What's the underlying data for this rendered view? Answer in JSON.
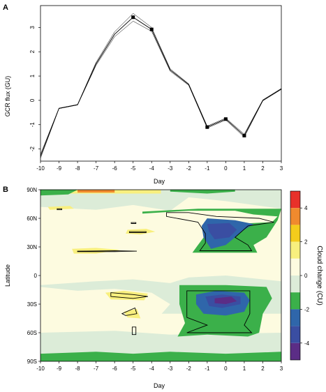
{
  "chart_data": [
    {
      "panel_label": "A",
      "type": "line",
      "xlabel": "Day",
      "ylabel": "GCR flux (GU)",
      "xlim": [
        -10,
        3
      ],
      "ylim": [
        -2.5,
        3.9
      ],
      "x_ticks": [
        "-10",
        "-9",
        "-8",
        "-7",
        "-6",
        "-5",
        "-4",
        "-3",
        "-2",
        "-1",
        "0",
        "1",
        "2",
        "3"
      ],
      "y_ticks": [
        "-2",
        "-1",
        "0",
        "1",
        "2",
        "3"
      ],
      "x": [
        -10,
        -9,
        -8,
        -7,
        -6,
        -5,
        -4,
        -3,
        -2,
        -1,
        0,
        1,
        2,
        3
      ],
      "series": [
        {
          "values": [
            -2.3,
            -0.33,
            -0.18,
            1.5,
            2.72,
            3.42,
            2.92,
            1.25,
            0.65,
            -1.1,
            -0.77,
            -1.45,
            0.0,
            0.47
          ]
        },
        {
          "values": [
            -2.22,
            -0.32,
            -0.17,
            1.56,
            2.82,
            3.58,
            3.0,
            1.3,
            0.68,
            -1.06,
            -0.73,
            -1.39,
            0.02,
            0.49
          ]
        },
        {
          "values": [
            -2.38,
            -0.34,
            -0.19,
            1.44,
            2.62,
            3.26,
            2.84,
            1.2,
            0.62,
            -1.14,
            -0.81,
            -1.51,
            -0.02,
            0.45
          ]
        }
      ],
      "markers": [
        {
          "x": -5,
          "y": 3.42
        },
        {
          "x": -4,
          "y": 2.92
        },
        {
          "x": -1,
          "y": -1.1
        },
        {
          "x": 0,
          "y": -0.77
        },
        {
          "x": 1,
          "y": -1.45
        }
      ]
    },
    {
      "panel_label": "B",
      "type": "heatmap",
      "xlabel": "Day",
      "ylabel": "Latitude",
      "xlim": [
        -10,
        3
      ],
      "ylim": [
        -90,
        90
      ],
      "x_ticks": [
        "-10",
        "-9",
        "-8",
        "-7",
        "-6",
        "-5",
        "-4",
        "-3",
        "-2",
        "-1",
        "0",
        "1",
        "2",
        "3"
      ],
      "y_ticks": [
        {
          "value": 90,
          "label": "90N"
        },
        {
          "value": 60,
          "label": "60N"
        },
        {
          "value": 30,
          "label": "30N"
        },
        {
          "value": 0,
          "label": "0"
        },
        {
          "value": -30,
          "label": "30S"
        },
        {
          "value": -60,
          "label": "60S"
        },
        {
          "value": -90,
          "label": "90S"
        }
      ],
      "colorbar": {
        "label": "Cloud change (CU)",
        "ticks": [
          "4",
          "2",
          "0",
          "-2",
          "-4"
        ],
        "levels": [
          {
            "min": 4,
            "max": 5,
            "color": "#e8312a"
          },
          {
            "min": 3,
            "max": 4,
            "color": "#f08a2e"
          },
          {
            "min": 2,
            "max": 3,
            "color": "#f4cc1c"
          },
          {
            "min": 1,
            "max": 2,
            "color": "#f8ef7e"
          },
          {
            "min": 0,
            "max": 1,
            "color": "#fdfbe0"
          },
          {
            "min": -1,
            "max": 0,
            "color": "#dcecd8"
          },
          {
            "min": -2,
            "max": -1,
            "color": "#3bb04a"
          },
          {
            "min": -3,
            "max": -2,
            "color": "#2f66aa"
          },
          {
            "min": -4,
            "max": -3,
            "color": "#3a4ea2"
          },
          {
            "min": -5,
            "max": -4,
            "color": "#5b2d86"
          }
        ]
      },
      "regions": [
        {
          "level": -0.5,
          "polygon": [
            [
              -10,
              72
            ],
            [
              -7,
              69
            ],
            [
              -5,
              74
            ],
            [
              -3,
              68
            ],
            [
              -2,
              82
            ],
            [
              0,
              78
            ],
            [
              3,
              70
            ],
            [
              3,
              90
            ],
            [
              -10,
              90
            ]
          ]
        },
        {
          "level": -0.5,
          "polygon": [
            [
              -10,
              -10
            ],
            [
              -7,
              -6
            ],
            [
              -5,
              -4
            ],
            [
              -3,
              -8
            ],
            [
              -2,
              -2
            ],
            [
              0,
              0
            ],
            [
              2,
              -4
            ],
            [
              3,
              -6
            ],
            [
              3,
              -40
            ],
            [
              -10,
              -40
            ]
          ]
        },
        {
          "level": -0.5,
          "polygon": [
            [
              -10,
              -60
            ],
            [
              -6,
              -58
            ],
            [
              -3,
              -62
            ],
            [
              3,
              -60
            ],
            [
              3,
              -90
            ],
            [
              -10,
              -90
            ]
          ]
        },
        {
          "level": 0.5,
          "polygon": [
            [
              -10,
              62
            ],
            [
              -8,
              68
            ],
            [
              -6,
              64
            ],
            [
              -4,
              62
            ],
            [
              -3,
              56
            ],
            [
              -4,
              40
            ],
            [
              -5,
              36
            ],
            [
              -7,
              30
            ],
            [
              -9,
              40
            ],
            [
              -10,
              44
            ]
          ]
        },
        {
          "level": 0.5,
          "polygon": [
            [
              -10,
              20
            ],
            [
              -8,
              28
            ],
            [
              -6,
              22
            ],
            [
              -4,
              14
            ],
            [
              -3,
              6
            ],
            [
              -5,
              2
            ],
            [
              -7,
              8
            ],
            [
              -9,
              4
            ],
            [
              -10,
              6
            ]
          ]
        },
        {
          "level": 0.5,
          "polygon": [
            [
              -10,
              -12
            ],
            [
              -8,
              -16
            ],
            [
              -6,
              -14
            ],
            [
              -4,
              -18
            ],
            [
              -3,
              -30
            ],
            [
              -4,
              -52
            ],
            [
              -6,
              -54
            ],
            [
              -8,
              -50
            ],
            [
              -10,
              -54
            ]
          ]
        },
        {
          "level": 1.5,
          "polygon": [
            [
              -9.6,
              72
            ],
            [
              -8.4,
              73
            ],
            [
              -8.2,
              70
            ],
            [
              -9.5,
              69
            ]
          ]
        },
        {
          "level": 1.5,
          "polygon": [
            [
              -8.3,
              28
            ],
            [
              -7,
              29
            ],
            [
              -5.7,
              27
            ],
            [
              -7,
              23
            ],
            [
              -8.2,
              23
            ]
          ]
        },
        {
          "level": 1.5,
          "polygon": [
            [
              -6.5,
              -18
            ],
            [
              -5.5,
              -16
            ],
            [
              -4.2,
              -19
            ],
            [
              -4.4,
              -26
            ],
            [
              -6.2,
              -25
            ]
          ]
        },
        {
          "level": 1.5,
          "polygon": [
            [
              -5.5,
              -38
            ],
            [
              -4.8,
              -35
            ],
            [
              -4.6,
              -45
            ],
            [
              -5.3,
              -44
            ]
          ]
        },
        {
          "level": 1.5,
          "polygon": [
            [
              -5.3,
              48
            ],
            [
              -4.3,
              49
            ],
            [
              -3.8,
              46
            ],
            [
              -4.6,
              43
            ],
            [
              -5.4,
              44
            ]
          ]
        },
        {
          "level": 1.5,
          "polygon": [
            [
              -10,
              86
            ],
            [
              -3.5,
              86
            ],
            [
              -3.5,
              90
            ],
            [
              -10,
              90
            ]
          ]
        },
        {
          "level": 3.5,
          "polygon": [
            [
              -8,
              87
            ],
            [
              -6,
              87
            ],
            [
              -6,
              90
            ],
            [
              -8,
              90
            ]
          ]
        },
        {
          "level": -1.5,
          "polygon": [
            [
              -10,
              84
            ],
            [
              -8.5,
              85
            ],
            [
              -8,
              90
            ],
            [
              -10,
              90
            ]
          ]
        },
        {
          "level": -1.5,
          "polygon": [
            [
              -3,
              88
            ],
            [
              -1,
              86
            ],
            [
              0.5,
              88
            ],
            [
              0.5,
              90
            ],
            [
              -3,
              90
            ]
          ]
        },
        {
          "level": -1.5,
          "polygon": [
            [
              -4.5,
              65
            ],
            [
              -2,
              68
            ],
            [
              0.5,
              68
            ],
            [
              1.5,
              64
            ],
            [
              2.8,
              62
            ],
            [
              2.5,
              56
            ],
            [
              1.5,
              55
            ],
            [
              0.5,
              54
            ],
            [
              -0.5,
              58
            ],
            [
              -1.5,
              32
            ],
            [
              -1.8,
              24
            ],
            [
              1.7,
              24
            ],
            [
              1.5,
              32
            ],
            [
              2.2,
              40
            ],
            [
              2.8,
              58
            ],
            [
              3,
              70
            ],
            [
              -1.5,
              70
            ],
            [
              -4.5,
              67
            ]
          ]
        },
        {
          "level": -1.5,
          "polygon": [
            [
              -2.5,
              -10
            ],
            [
              0,
              -10
            ],
            [
              2.2,
              -12
            ],
            [
              2.5,
              -24
            ],
            [
              2,
              -40
            ],
            [
              1.8,
              -60
            ],
            [
              1.2,
              -64
            ],
            [
              -1,
              -62
            ],
            [
              -2.6,
              -64
            ],
            [
              -2.2,
              -50
            ],
            [
              -2.5,
              -30
            ]
          ]
        },
        {
          "level": -1.5,
          "polygon": [
            [
              -10,
              -82
            ],
            [
              -7,
              -80
            ],
            [
              -5,
              -82
            ],
            [
              -3,
              -80
            ],
            [
              0,
              -82
            ],
            [
              3,
              -80
            ],
            [
              3,
              -90
            ],
            [
              -10,
              -90
            ]
          ]
        },
        {
          "level": -2.5,
          "polygon": [
            [
              -1,
              60
            ],
            [
              0.5,
              58
            ],
            [
              1.5,
              54
            ],
            [
              1,
              48
            ],
            [
              0.5,
              40
            ],
            [
              0,
              32
            ],
            [
              -0.8,
              28
            ],
            [
              -1.2,
              40
            ],
            [
              -1.3,
              52
            ]
          ]
        },
        {
          "level": -2.5,
          "polygon": [
            [
              -1.6,
              -20
            ],
            [
              -0.5,
              -16
            ],
            [
              1,
              -18
            ],
            [
              1.3,
              -26
            ],
            [
              1,
              -38
            ],
            [
              0,
              -42
            ],
            [
              -1.2,
              -40
            ],
            [
              -1.6,
              -30
            ]
          ]
        },
        {
          "level": -3.5,
          "polygon": [
            [
              -1,
              54
            ],
            [
              0.2,
              55
            ],
            [
              0.6,
              48
            ],
            [
              0.2,
              40
            ],
            [
              -0.6,
              38
            ],
            [
              -0.9,
              46
            ]
          ]
        },
        {
          "level": -3.5,
          "polygon": [
            [
              -1.1,
              -22
            ],
            [
              -0.2,
              -20
            ],
            [
              0.8,
              -22
            ],
            [
              0.8,
              -30
            ],
            [
              -0.2,
              -34
            ],
            [
              -0.9,
              -32
            ]
          ]
        },
        {
          "level": -4.5,
          "polygon": [
            [
              -0.6,
              -24
            ],
            [
              0.3,
              -22
            ],
            [
              0.6,
              -27
            ],
            [
              0,
              -30
            ],
            [
              -0.6,
              -29
            ]
          ]
        }
      ],
      "significance_contours": [
        [
          [
            -3.2,
            66
          ],
          [
            -2,
            66
          ],
          [
            -0.5,
            62
          ],
          [
            1.8,
            60
          ],
          [
            2.6,
            56
          ],
          [
            1.2,
            52
          ],
          [
            0.5,
            40
          ],
          [
            1.2,
            32
          ],
          [
            1.4,
            26
          ],
          [
            -1.4,
            26
          ],
          [
            -1.1,
            34
          ],
          [
            -1.1,
            44
          ],
          [
            -1.5,
            56
          ],
          [
            -3.2,
            62
          ]
        ],
        [
          [
            -2.1,
            -16
          ],
          [
            1.3,
            -16
          ],
          [
            1.3,
            -40
          ],
          [
            1.0,
            -52
          ],
          [
            1.4,
            -60
          ],
          [
            -2.1,
            -60
          ],
          [
            -1.0,
            -52
          ],
          [
            -2.1,
            -44
          ]
        ],
        [
          [
            -8,
            25
          ],
          [
            -6,
            25
          ],
          [
            -4.8,
            25.5
          ],
          [
            -6,
            26
          ],
          [
            -8,
            25.5
          ]
        ],
        [
          [
            -6.2,
            -18
          ],
          [
            -5,
            -20
          ],
          [
            -4.2,
            -22
          ],
          [
            -5,
            -24
          ],
          [
            -6.2,
            -22
          ]
        ],
        [
          [
            -5.6,
            -40
          ],
          [
            -4.9,
            -34
          ],
          [
            -4.8,
            -40
          ],
          [
            -5.4,
            -42
          ]
        ],
        [
          [
            -5.2,
            46
          ],
          [
            -4.3,
            46
          ],
          [
            -4.3,
            45
          ],
          [
            -5.2,
            45
          ]
        ],
        [
          [
            -5.05,
            -54
          ],
          [
            -4.85,
            -54
          ],
          [
            -4.85,
            -62
          ],
          [
            -5.05,
            -62
          ]
        ],
        [
          [
            -5.1,
            55.5
          ],
          [
            -4.85,
            55.5
          ],
          [
            -4.85,
            54.5
          ],
          [
            -5.1,
            54.5
          ]
        ],
        [
          [
            -9.1,
            70
          ],
          [
            -8.85,
            70
          ],
          [
            -8.85,
            69
          ],
          [
            -9.1,
            69
          ]
        ]
      ]
    }
  ]
}
